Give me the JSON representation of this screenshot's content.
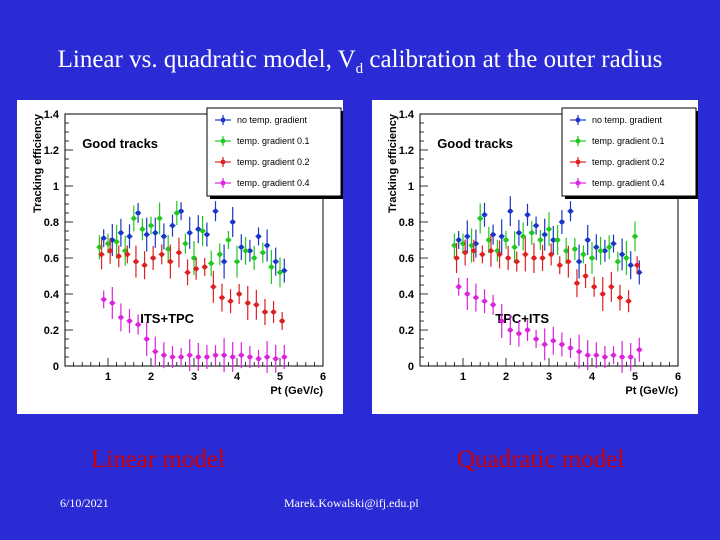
{
  "slide": {
    "title_main": "Linear vs. quadratic model, V",
    "title_sub": "d",
    "title_rest": " calibration at the outer radius",
    "caption_left": "Linear model",
    "caption_right": "Quadratic model",
    "footer_date": "6/10/2021",
    "footer_email": "Marek.Kowalski@ifj.edu.pl"
  },
  "colors": {
    "background": "#2b2bd6",
    "caption": "#cc0000"
  },
  "chart_data": [
    {
      "type": "scatter",
      "title": "Good tracks",
      "annotation": "ITS+TPC",
      "xlabel": "Pt (GeV/c)",
      "ylabel": "Tracking efficiency",
      "xlim": [
        0,
        6
      ],
      "ylim": [
        0,
        1.4
      ],
      "xticks": [
        "1",
        "2",
        "3",
        "4",
        "5",
        "6"
      ],
      "yticks": [
        "0",
        "0.2",
        "0.4",
        "0.6",
        "0.8",
        "1",
        "1.2",
        "1.4"
      ],
      "legend_position": "top-right",
      "series": [
        {
          "name": "no temp. gradient",
          "color": "#1a35c8",
          "x": [
            0.9,
            1.1,
            1.3,
            1.5,
            1.7,
            1.9,
            2.1,
            2.3,
            2.5,
            2.7,
            2.9,
            3.1,
            3.3,
            3.5,
            3.7,
            3.9,
            4.1,
            4.3,
            4.5,
            4.7,
            4.9,
            5.1
          ],
          "y": [
            0.71,
            0.7,
            0.74,
            0.72,
            0.85,
            0.73,
            0.74,
            0.72,
            0.78,
            0.86,
            0.74,
            0.76,
            0.73,
            0.86,
            0.58,
            0.8,
            0.66,
            0.64,
            0.72,
            0.67,
            0.58,
            0.53
          ]
        },
        {
          "name": "temp. gradient 0.1",
          "color": "#22c822",
          "x": [
            0.8,
            1.0,
            1.2,
            1.4,
            1.6,
            1.8,
            2.0,
            2.2,
            2.4,
            2.6,
            2.8,
            3.0,
            3.2,
            3.4,
            3.6,
            3.8,
            4.0,
            4.2,
            4.4,
            4.6,
            4.8,
            5.0
          ],
          "y": [
            0.66,
            0.68,
            0.69,
            0.64,
            0.82,
            0.76,
            0.78,
            0.82,
            0.65,
            0.85,
            0.68,
            0.6,
            0.75,
            0.57,
            0.62,
            0.7,
            0.58,
            0.64,
            0.6,
            0.63,
            0.55,
            0.52
          ]
        },
        {
          "name": "temp. gradient 0.2",
          "color": "#dd2020",
          "x": [
            0.85,
            1.05,
            1.25,
            1.45,
            1.65,
            1.85,
            2.05,
            2.25,
            2.45,
            2.65,
            2.85,
            3.05,
            3.25,
            3.45,
            3.65,
            3.85,
            4.05,
            4.25,
            4.45,
            4.65,
            4.85,
            5.05
          ],
          "y": [
            0.62,
            0.64,
            0.61,
            0.62,
            0.58,
            0.56,
            0.6,
            0.62,
            0.58,
            0.63,
            0.52,
            0.54,
            0.55,
            0.44,
            0.38,
            0.36,
            0.4,
            0.35,
            0.34,
            0.3,
            0.3,
            0.25
          ]
        },
        {
          "name": "temp. gradient 0.4",
          "color": "#dd22dd",
          "x": [
            0.9,
            1.1,
            1.3,
            1.5,
            1.7,
            1.9,
            2.1,
            2.3,
            2.5,
            2.7,
            2.9,
            3.1,
            3.3,
            3.5,
            3.7,
            3.9,
            4.1,
            4.3,
            4.5,
            4.7,
            4.9,
            5.1
          ],
          "y": [
            0.37,
            0.35,
            0.27,
            0.25,
            0.23,
            0.15,
            0.08,
            0.06,
            0.05,
            0.05,
            0.06,
            0.05,
            0.05,
            0.06,
            0.06,
            0.05,
            0.06,
            0.05,
            0.04,
            0.05,
            0.04,
            0.05
          ]
        }
      ]
    },
    {
      "type": "scatter",
      "title": "Good tracks",
      "annotation": "TPC+ITS",
      "xlabel": "Pt (GeV/c)",
      "ylabel": "Tracking efficiency",
      "xlim": [
        0,
        6
      ],
      "ylim": [
        0,
        1.4
      ],
      "xticks": [
        "1",
        "2",
        "3",
        "4",
        "5",
        "6"
      ],
      "yticks": [
        "0",
        "0.2",
        "0.4",
        "0.6",
        "0.8",
        "1",
        "1.2",
        "1.4"
      ],
      "legend_position": "top-right",
      "series": [
        {
          "name": "no temp. gradient",
          "color": "#1a35c8",
          "x": [
            0.9,
            1.1,
            1.3,
            1.5,
            1.7,
            1.9,
            2.1,
            2.3,
            2.5,
            2.7,
            2.9,
            3.1,
            3.3,
            3.5,
            3.7,
            3.9,
            4.1,
            4.3,
            4.5,
            4.7,
            4.9,
            5.1
          ],
          "y": [
            0.7,
            0.72,
            0.68,
            0.84,
            0.73,
            0.72,
            0.86,
            0.74,
            0.84,
            0.78,
            0.73,
            0.7,
            0.8,
            0.86,
            0.58,
            0.7,
            0.66,
            0.64,
            0.68,
            0.62,
            0.56,
            0.52
          ]
        },
        {
          "name": "temp. gradient 0.1",
          "color": "#22c822",
          "x": [
            0.8,
            1.0,
            1.2,
            1.4,
            1.6,
            1.8,
            2.0,
            2.2,
            2.4,
            2.6,
            2.8,
            3.0,
            3.2,
            3.4,
            3.6,
            3.8,
            4.0,
            4.2,
            4.4,
            4.6,
            4.8,
            5.0
          ],
          "y": [
            0.67,
            0.68,
            0.67,
            0.82,
            0.7,
            0.64,
            0.7,
            0.66,
            0.72,
            0.74,
            0.7,
            0.76,
            0.7,
            0.64,
            0.65,
            0.62,
            0.6,
            0.64,
            0.66,
            0.58,
            0.6,
            0.72
          ]
        },
        {
          "name": "temp. gradient 0.2",
          "color": "#dd2020",
          "x": [
            0.85,
            1.05,
            1.25,
            1.45,
            1.65,
            1.85,
            2.05,
            2.25,
            2.45,
            2.65,
            2.85,
            3.05,
            3.25,
            3.45,
            3.65,
            3.85,
            4.05,
            4.25,
            4.45,
            4.65,
            4.85,
            5.05
          ],
          "y": [
            0.6,
            0.63,
            0.64,
            0.62,
            0.64,
            0.62,
            0.6,
            0.58,
            0.62,
            0.6,
            0.6,
            0.62,
            0.56,
            0.58,
            0.46,
            0.5,
            0.44,
            0.4,
            0.44,
            0.38,
            0.36,
            0.56
          ]
        },
        {
          "name": "temp. gradient 0.4",
          "color": "#dd22dd",
          "x": [
            0.9,
            1.1,
            1.3,
            1.5,
            1.7,
            1.9,
            2.1,
            2.3,
            2.5,
            2.7,
            2.9,
            3.1,
            3.3,
            3.5,
            3.7,
            3.9,
            4.1,
            4.3,
            4.5,
            4.7,
            4.9,
            5.1
          ],
          "y": [
            0.44,
            0.4,
            0.38,
            0.36,
            0.34,
            0.25,
            0.2,
            0.18,
            0.2,
            0.15,
            0.12,
            0.14,
            0.12,
            0.1,
            0.08,
            0.06,
            0.06,
            0.05,
            0.06,
            0.05,
            0.05,
            0.09
          ]
        }
      ]
    }
  ]
}
